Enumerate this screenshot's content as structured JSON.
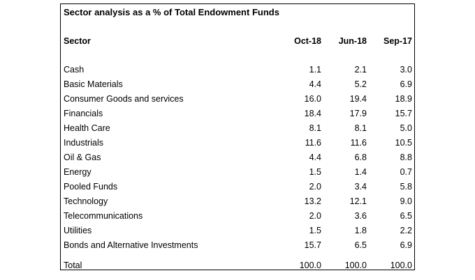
{
  "table": {
    "title": "Sector analysis as a % of Total Endowment Funds",
    "header": {
      "sector_label": "Sector",
      "columns": [
        "Oct-18",
        "Jun-18",
        "Sep-17"
      ]
    },
    "rows": [
      {
        "sector": "Cash",
        "values": [
          "1.1",
          "2.1",
          "3.0"
        ]
      },
      {
        "sector": "Basic Materials",
        "values": [
          "4.4",
          "5.2",
          "6.9"
        ]
      },
      {
        "sector": "Consumer Goods and services",
        "values": [
          "16.0",
          "19.4",
          "18.9"
        ]
      },
      {
        "sector": "Financials",
        "values": [
          "18.4",
          "17.9",
          "15.7"
        ]
      },
      {
        "sector": "Health Care",
        "values": [
          "8.1",
          "8.1",
          "5.0"
        ]
      },
      {
        "sector": "Industrials",
        "values": [
          "11.6",
          "11.6",
          "10.5"
        ]
      },
      {
        "sector": "Oil & Gas",
        "values": [
          "4.4",
          "6.8",
          "8.8"
        ]
      },
      {
        "sector": "Energy",
        "values": [
          "1.5",
          "1.4",
          "0.7"
        ]
      },
      {
        "sector": "Pooled Funds",
        "values": [
          "2.0",
          "3.4",
          "5.8"
        ]
      },
      {
        "sector": "Technology",
        "values": [
          "13.2",
          "12.1",
          "9.0"
        ]
      },
      {
        "sector": "Telecommunications",
        "values": [
          "2.0",
          "3.6",
          "6.5"
        ]
      },
      {
        "sector": "Utilities",
        "values": [
          "1.5",
          "1.8",
          "2.2"
        ]
      },
      {
        "sector": "Bonds and Alternative Investments",
        "values": [
          "15.7",
          "6.5",
          "6.9"
        ]
      }
    ],
    "total": {
      "label": "Total",
      "values": [
        "100.0",
        "100.0",
        "100.0"
      ]
    }
  },
  "colors": {
    "background": "#ffffff",
    "text": "#000000",
    "border": "#000000"
  },
  "chart_data": {
    "type": "table",
    "title": "Sector analysis as a % of Total Endowment Funds",
    "columns": [
      "Sector",
      "Oct-18",
      "Jun-18",
      "Sep-17"
    ],
    "rows": [
      [
        "Cash",
        1.1,
        2.1,
        3.0
      ],
      [
        "Basic Materials",
        4.4,
        5.2,
        6.9
      ],
      [
        "Consumer Goods and services",
        16.0,
        19.4,
        18.9
      ],
      [
        "Financials",
        18.4,
        17.9,
        15.7
      ],
      [
        "Health Care",
        8.1,
        8.1,
        5.0
      ],
      [
        "Industrials",
        11.6,
        11.6,
        10.5
      ],
      [
        "Oil & Gas",
        4.4,
        6.8,
        8.8
      ],
      [
        "Energy",
        1.5,
        1.4,
        0.7
      ],
      [
        "Pooled Funds",
        2.0,
        3.4,
        5.8
      ],
      [
        "Technology",
        13.2,
        12.1,
        9.0
      ],
      [
        "Telecommunications",
        2.0,
        3.6,
        6.5
      ],
      [
        "Utilities",
        1.5,
        1.8,
        2.2
      ],
      [
        "Bonds and Alternative Investments",
        15.7,
        6.5,
        6.9
      ]
    ],
    "total_row": [
      "Total",
      100.0,
      100.0,
      100.0
    ],
    "units": "% of Total Endowment Funds"
  }
}
